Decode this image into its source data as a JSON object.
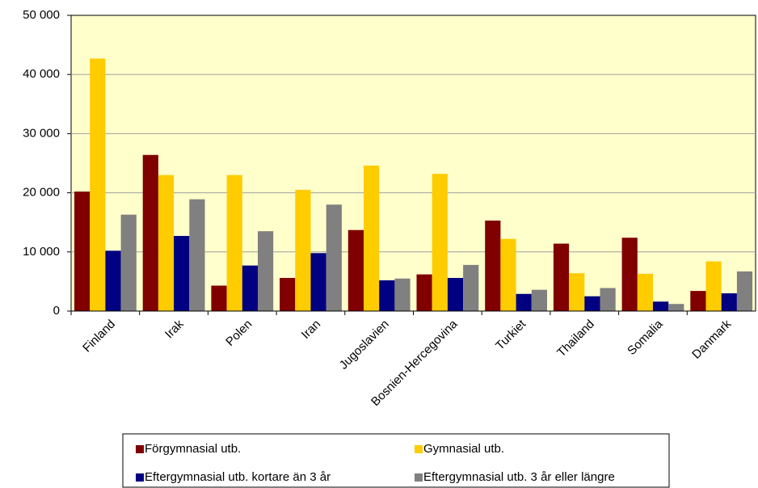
{
  "chart_data": {
    "type": "bar",
    "categories": [
      "Finland",
      "Irak",
      "Polen",
      "Iran",
      "Jugoslavien",
      "Bosnien-Hercegovina",
      "Turkiet",
      "Thailand",
      "Somalia",
      "Danmark"
    ],
    "series": [
      {
        "name": "Förgymnasial utb.",
        "color": "#800000",
        "values": [
          20200,
          26400,
          4300,
          5600,
          13700,
          6200,
          15300,
          11400,
          12400,
          3400
        ]
      },
      {
        "name": "Gymnasial utb.",
        "color": "#ffcc00",
        "values": [
          42700,
          23000,
          23000,
          20500,
          24600,
          23200,
          12200,
          6400,
          6300,
          8400
        ]
      },
      {
        "name": "Eftergymnasial utb. kortare än 3 år",
        "color": "#000080",
        "values": [
          10200,
          12700,
          7700,
          9800,
          5200,
          5600,
          2900,
          2500,
          1600,
          3000
        ]
      },
      {
        "name": "Eftergymnasial utb. 3 år eller längre",
        "color": "#808080",
        "values": [
          16300,
          18900,
          13500,
          18000,
          5500,
          7800,
          3600,
          3900,
          1200,
          6700
        ]
      }
    ],
    "ylim": [
      0,
      50000
    ],
    "yticks": [
      0,
      {
        "value": 10000,
        "label": "10 000"
      },
      {
        "value": 20000,
        "label": "20 000"
      },
      {
        "value": 30000,
        "label": "30 000"
      },
      {
        "value": 40000,
        "label": "40 000"
      },
      {
        "value": 50000,
        "label": "50 000"
      }
    ],
    "grid": true,
    "plot_background": "#ffffcc",
    "legend": "bottom"
  }
}
